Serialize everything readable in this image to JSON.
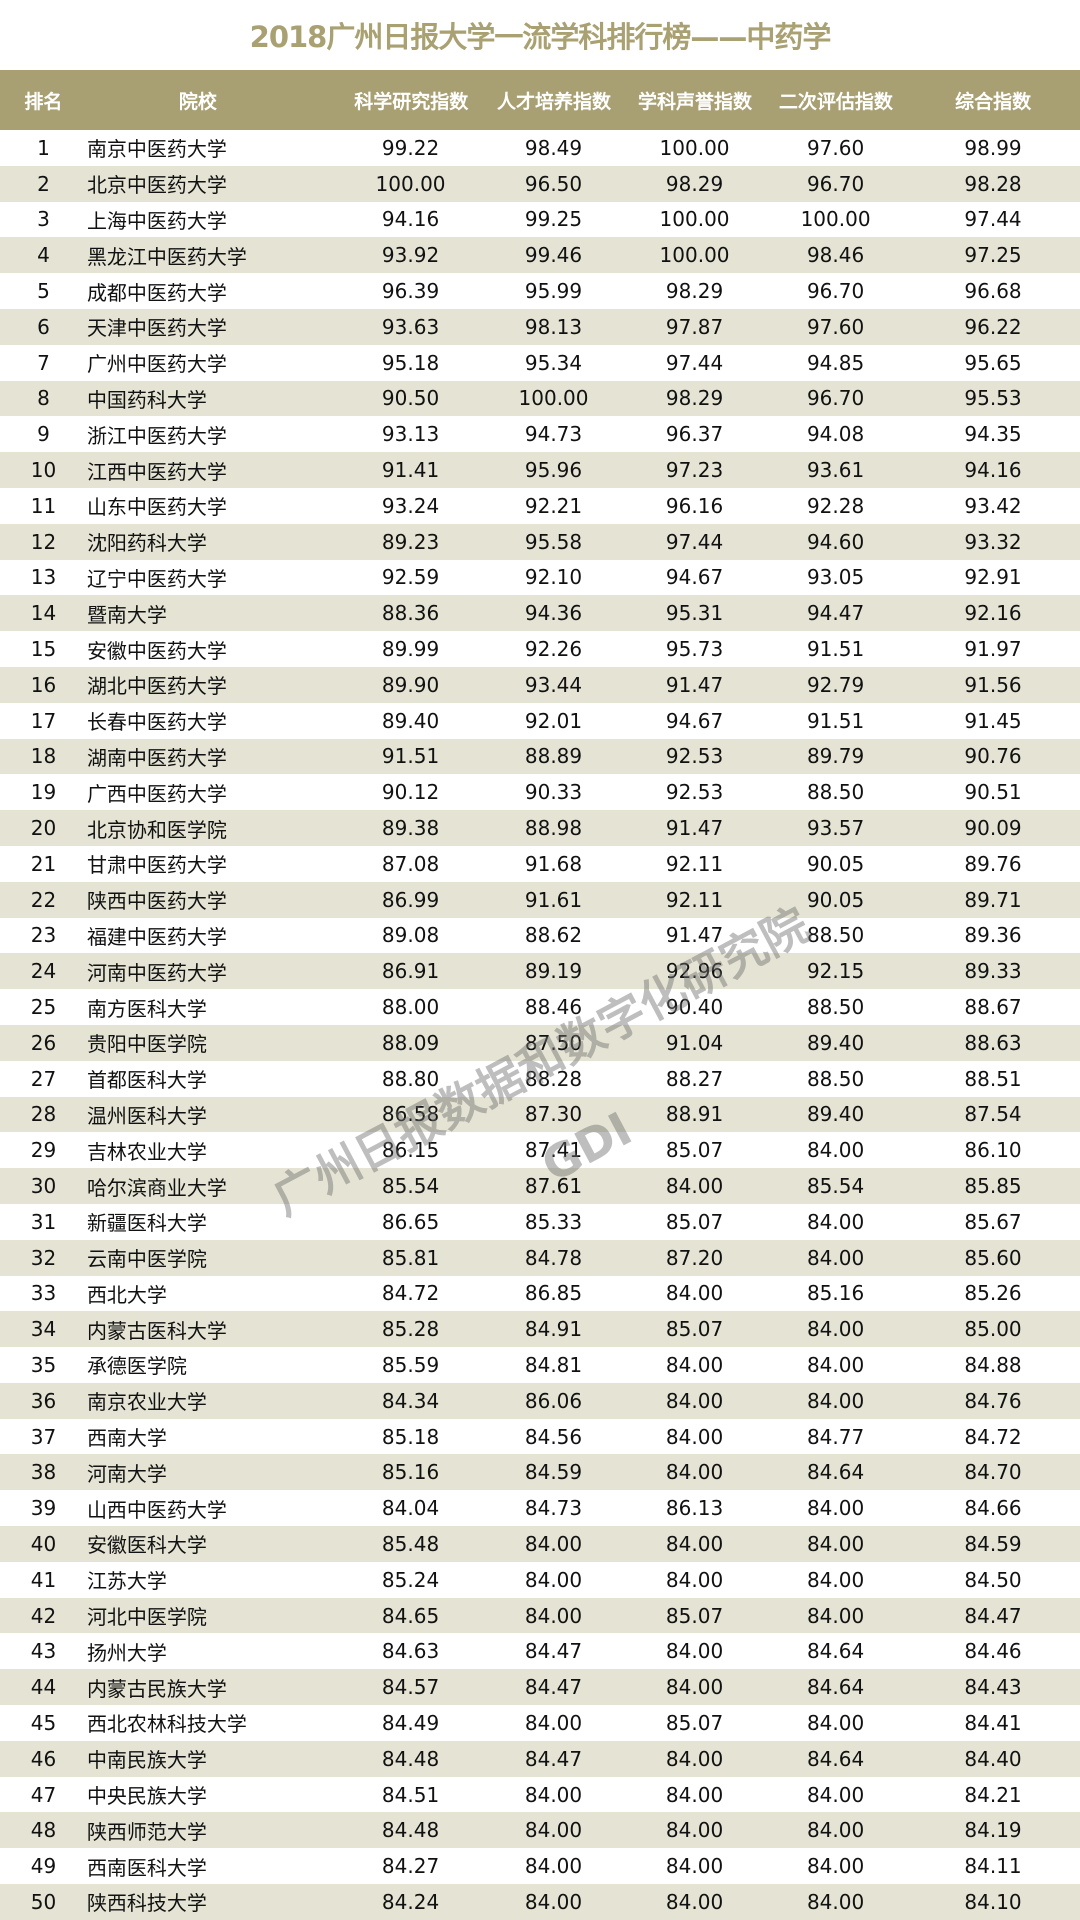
{
  "title": "2018广州日报大学一流学科排行榜——中药学",
  "colors": {
    "header_bg": "#a8a073",
    "alt_row": "#e5e3d4",
    "title": "#a9a172"
  },
  "columns": [
    "排名",
    "院校",
    "科学研究指数",
    "人才培养指数",
    "学科声誉指数",
    "二次评估指数",
    "综合指数"
  ],
  "watermark": {
    "text": "广州日报数据和数字化研究院",
    "sub": "GDI"
  },
  "rows": [
    [
      "1",
      "南京中医药大学",
      "99.22",
      "98.49",
      "100.00",
      "97.60",
      "98.99"
    ],
    [
      "2",
      "北京中医药大学",
      "100.00",
      "96.50",
      "98.29",
      "96.70",
      "98.28"
    ],
    [
      "3",
      "上海中医药大学",
      "94.16",
      "99.25",
      "100.00",
      "100.00",
      "97.44"
    ],
    [
      "4",
      "黑龙江中医药大学",
      "93.92",
      "99.46",
      "100.00",
      "98.46",
      "97.25"
    ],
    [
      "5",
      "成都中医药大学",
      "96.39",
      "95.99",
      "98.29",
      "96.70",
      "96.68"
    ],
    [
      "6",
      "天津中医药大学",
      "93.63",
      "98.13",
      "97.87",
      "97.60",
      "96.22"
    ],
    [
      "7",
      "广州中医药大学",
      "95.18",
      "95.34",
      "97.44",
      "94.85",
      "95.65"
    ],
    [
      "8",
      "中国药科大学",
      "90.50",
      "100.00",
      "98.29",
      "96.70",
      "95.53"
    ],
    [
      "9",
      "浙江中医药大学",
      "93.13",
      "94.73",
      "96.37",
      "94.08",
      "94.35"
    ],
    [
      "10",
      "江西中医药大学",
      "91.41",
      "95.96",
      "97.23",
      "93.61",
      "94.16"
    ],
    [
      "11",
      "山东中医药大学",
      "93.24",
      "92.21",
      "96.16",
      "92.28",
      "93.42"
    ],
    [
      "12",
      "沈阳药科大学",
      "89.23",
      "95.58",
      "97.44",
      "94.60",
      "93.32"
    ],
    [
      "13",
      "辽宁中医药大学",
      "92.59",
      "92.10",
      "94.67",
      "93.05",
      "92.91"
    ],
    [
      "14",
      "暨南大学",
      "88.36",
      "94.36",
      "95.31",
      "94.47",
      "92.16"
    ],
    [
      "15",
      "安徽中医药大学",
      "89.99",
      "92.26",
      "95.73",
      "91.51",
      "91.97"
    ],
    [
      "16",
      "湖北中医药大学",
      "89.90",
      "93.44",
      "91.47",
      "92.79",
      "91.56"
    ],
    [
      "17",
      "长春中医药大学",
      "89.40",
      "92.01",
      "94.67",
      "91.51",
      "91.45"
    ],
    [
      "18",
      "湖南中医药大学",
      "91.51",
      "88.89",
      "92.53",
      "89.79",
      "90.76"
    ],
    [
      "19",
      "广西中医药大学",
      "90.12",
      "90.33",
      "92.53",
      "88.50",
      "90.51"
    ],
    [
      "20",
      "北京协和医学院",
      "89.38",
      "88.98",
      "91.47",
      "93.57",
      "90.09"
    ],
    [
      "21",
      "甘肃中医药大学",
      "87.08",
      "91.68",
      "92.11",
      "90.05",
      "89.76"
    ],
    [
      "22",
      "陕西中医药大学",
      "86.99",
      "91.61",
      "92.11",
      "90.05",
      "89.71"
    ],
    [
      "23",
      "福建中医药大学",
      "89.08",
      "88.62",
      "91.47",
      "88.50",
      "89.36"
    ],
    [
      "24",
      "河南中医药大学",
      "86.91",
      "89.19",
      "92.96",
      "92.15",
      "89.33"
    ],
    [
      "25",
      "南方医科大学",
      "88.00",
      "88.46",
      "90.40",
      "88.50",
      "88.67"
    ],
    [
      "26",
      "贵阳中医学院",
      "88.09",
      "87.50",
      "91.04",
      "89.40",
      "88.63"
    ],
    [
      "27",
      "首都医科大学",
      "88.80",
      "88.28",
      "88.27",
      "88.50",
      "88.51"
    ],
    [
      "28",
      "温州医科大学",
      "86.58",
      "87.30",
      "88.91",
      "89.40",
      "87.54"
    ],
    [
      "29",
      "吉林农业大学",
      "86.15",
      "87.41",
      "85.07",
      "84.00",
      "86.10"
    ],
    [
      "30",
      "哈尔滨商业大学",
      "85.54",
      "87.61",
      "84.00",
      "85.54",
      "85.85"
    ],
    [
      "31",
      "新疆医科大学",
      "86.65",
      "85.33",
      "85.07",
      "84.00",
      "85.67"
    ],
    [
      "32",
      "云南中医学院",
      "85.81",
      "84.78",
      "87.20",
      "84.00",
      "85.60"
    ],
    [
      "33",
      "西北大学",
      "84.72",
      "86.85",
      "84.00",
      "85.16",
      "85.26"
    ],
    [
      "34",
      "内蒙古医科大学",
      "85.28",
      "84.91",
      "85.07",
      "84.00",
      "85.00"
    ],
    [
      "35",
      "承德医学院",
      "85.59",
      "84.81",
      "84.00",
      "84.00",
      "84.88"
    ],
    [
      "36",
      "南京农业大学",
      "84.34",
      "86.06",
      "84.00",
      "84.00",
      "84.76"
    ],
    [
      "37",
      "西南大学",
      "85.18",
      "84.56",
      "84.00",
      "84.77",
      "84.72"
    ],
    [
      "38",
      "河南大学",
      "85.16",
      "84.59",
      "84.00",
      "84.64",
      "84.70"
    ],
    [
      "39",
      "山西中医药大学",
      "84.04",
      "84.73",
      "86.13",
      "84.00",
      "84.66"
    ],
    [
      "40",
      "安徽医科大学",
      "85.48",
      "84.00",
      "84.00",
      "84.00",
      "84.59"
    ],
    [
      "41",
      "江苏大学",
      "85.24",
      "84.00",
      "84.00",
      "84.00",
      "84.50"
    ],
    [
      "42",
      "河北中医学院",
      "84.65",
      "84.00",
      "85.07",
      "84.00",
      "84.47"
    ],
    [
      "43",
      "扬州大学",
      "84.63",
      "84.47",
      "84.00",
      "84.64",
      "84.46"
    ],
    [
      "44",
      "内蒙古民族大学",
      "84.57",
      "84.47",
      "84.00",
      "84.64",
      "84.43"
    ],
    [
      "45",
      "西北农林科技大学",
      "84.49",
      "84.00",
      "85.07",
      "84.00",
      "84.41"
    ],
    [
      "46",
      "中南民族大学",
      "84.48",
      "84.47",
      "84.00",
      "84.64",
      "84.40"
    ],
    [
      "47",
      "中央民族大学",
      "84.51",
      "84.00",
      "84.00",
      "84.00",
      "84.21"
    ],
    [
      "48",
      "陕西师范大学",
      "84.48",
      "84.00",
      "84.00",
      "84.00",
      "84.19"
    ],
    [
      "49",
      "西南医科大学",
      "84.27",
      "84.00",
      "84.00",
      "84.00",
      "84.11"
    ],
    [
      "50",
      "陕西科技大学",
      "84.24",
      "84.00",
      "84.00",
      "84.00",
      "84.10"
    ]
  ]
}
